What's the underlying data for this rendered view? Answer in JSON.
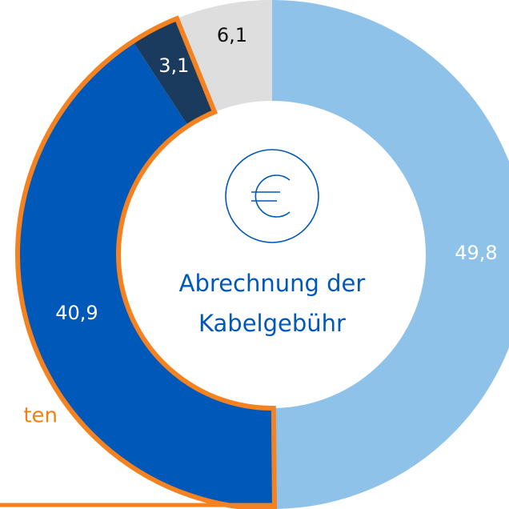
{
  "chart_data": {
    "type": "donut",
    "title": "Abrechnung der Kabelgebühr",
    "annotation": "ten",
    "values": [
      49.8,
      40.9,
      3.1,
      6.1
    ],
    "value_labels": [
      "49,8",
      "40,9",
      "3,1",
      "6,1"
    ],
    "colors": [
      "#8ec2e9",
      "#0058b8",
      "#1a3a5e",
      "#dedede"
    ]
  }
}
